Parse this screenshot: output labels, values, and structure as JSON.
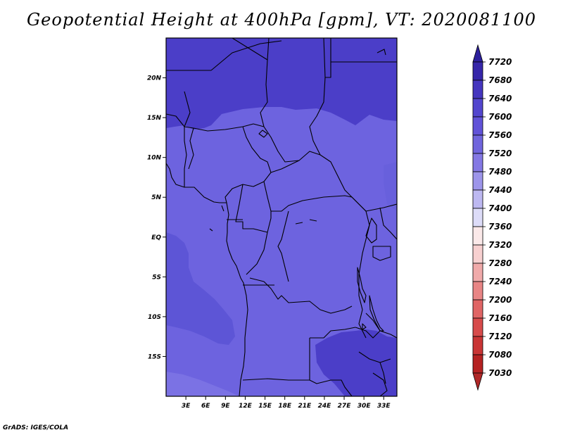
{
  "title": "Geopotential Height at 400hPa [gpm], VT: 2020081100",
  "credit": "GrADS: IGES/COLA",
  "map": {
    "lon_range": [
      0,
      35
    ],
    "lat_range": [
      -20,
      25
    ],
    "lat_ticks": [
      {
        "value": 20,
        "label": "20N"
      },
      {
        "value": 15,
        "label": "15N"
      },
      {
        "value": 10,
        "label": "10N"
      },
      {
        "value": 5,
        "label": "5N"
      },
      {
        "value": 0,
        "label": "EQ"
      },
      {
        "value": -5,
        "label": "5S"
      },
      {
        "value": -10,
        "label": "10S"
      },
      {
        "value": -15,
        "label": "15S"
      }
    ],
    "lon_ticks": [
      {
        "value": 3,
        "label": "3E"
      },
      {
        "value": 6,
        "label": "6E"
      },
      {
        "value": 9,
        "label": "9E"
      },
      {
        "value": 12,
        "label": "12E"
      },
      {
        "value": 15,
        "label": "15E"
      },
      {
        "value": 18,
        "label": "18E"
      },
      {
        "value": 21,
        "label": "21E"
      },
      {
        "value": 24,
        "label": "24E"
      },
      {
        "value": 27,
        "label": "27E"
      },
      {
        "value": 30,
        "label": "30E"
      },
      {
        "value": 33,
        "label": "33E"
      }
    ],
    "field_colors": {
      "band_7640_7680": "#4b3ec8",
      "band_7600_7640": "#5d55d6",
      "band_7560_7600": "#6d63df",
      "band_7520_7560": "#7b72e4"
    }
  },
  "colorbar": {
    "levels": [
      "7720",
      "7680",
      "7640",
      "7600",
      "7560",
      "7520",
      "7480",
      "7440",
      "7400",
      "7360",
      "7320",
      "7280",
      "7240",
      "7200",
      "7160",
      "7120",
      "7080",
      "7030"
    ],
    "colors": [
      "#2c1f9c",
      "#3626aa",
      "#4536bf",
      "#5346ce",
      "#6152d8",
      "#7065dd",
      "#8478e4",
      "#9d95ea",
      "#bdb8f1",
      "#dddcf8",
      "#fbe9e9",
      "#f7d0d0",
      "#f0aaaa",
      "#e88585",
      "#e06565",
      "#d74b4b",
      "#c93535",
      "#b52222"
    ],
    "top_color": "#2c1f9c",
    "bottom_color": "#b02828"
  }
}
